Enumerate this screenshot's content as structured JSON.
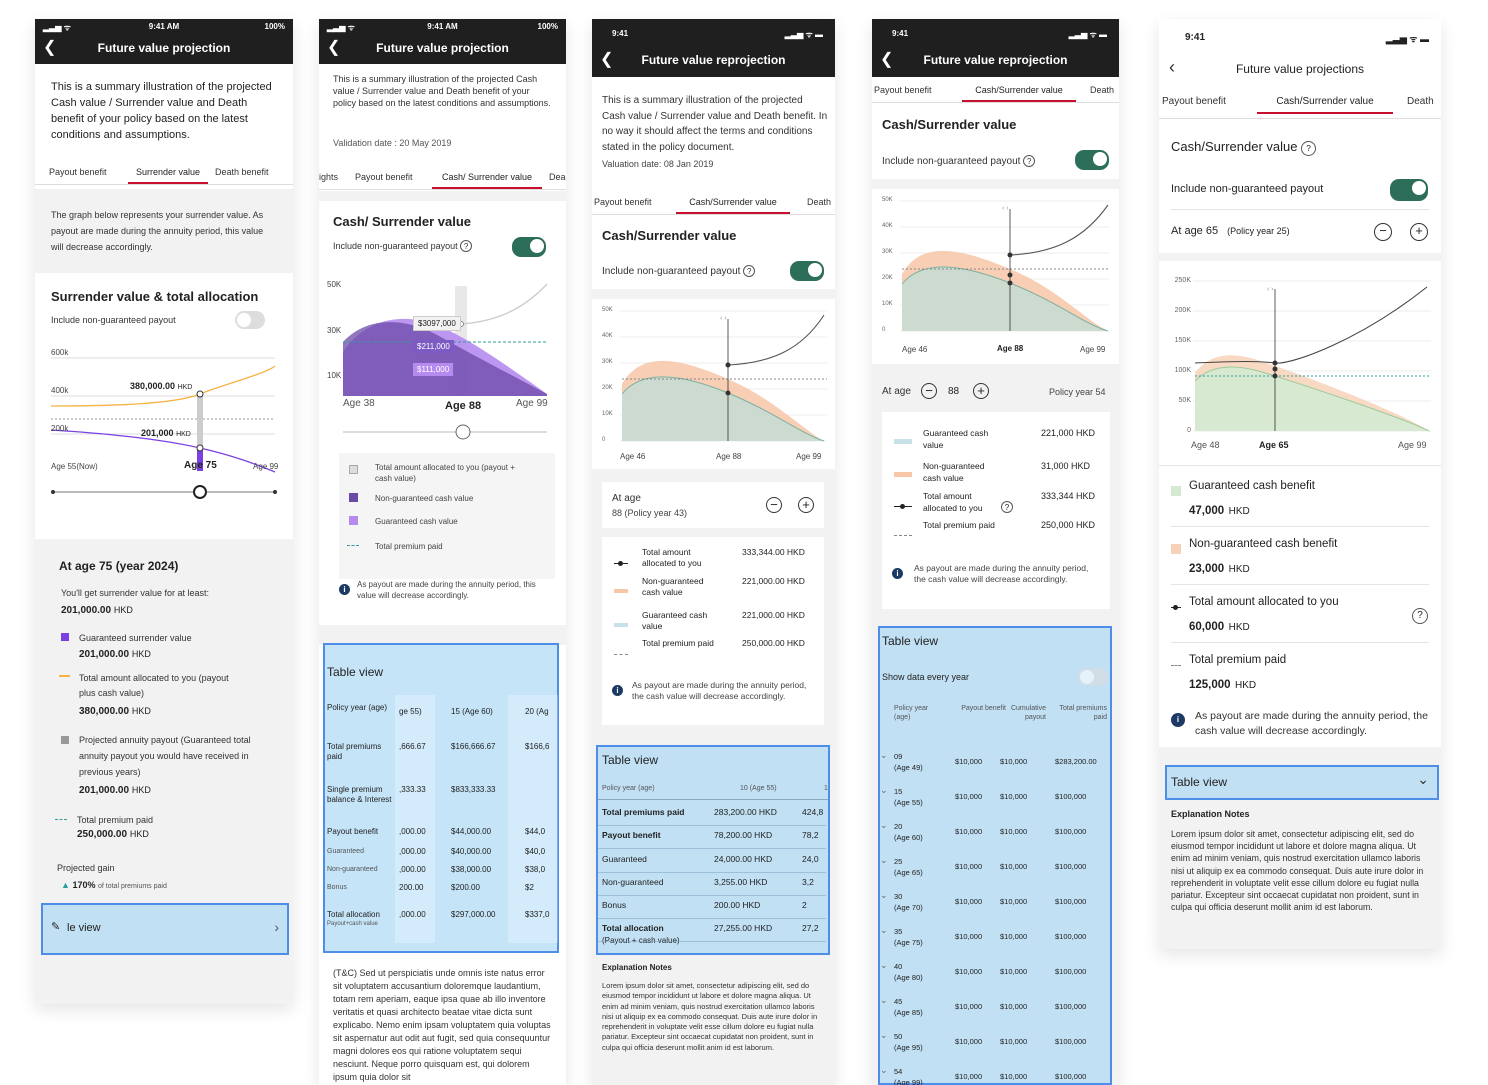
{
  "s1": {
    "status": {
      "time": "9:41 AM",
      "battery": "100%"
    },
    "title": "Future value projection",
    "intro": "This is a summary illustration of the projected Cash value / Surrender value and Death benefit of your policy based on the latest conditions and assumptions.",
    "tabs": [
      "Payout benefit",
      "Surrender value",
      "Death benefit"
    ],
    "graph_note": "The graph below represents your surrender value. As payout are made during the annuity period, this value will decrease accordingly.",
    "section_title": "Surrender value & total allocation",
    "include_label": "Include non-guaranteed payout",
    "y_ticks": [
      "600k",
      "400k",
      "200k"
    ],
    "label1": "380,000.00",
    "label2": "201,000",
    "unit": "HKD",
    "x_labels": [
      "Age 55(Now)",
      "Age 75",
      "Age 99"
    ],
    "at_age": "At age 75 (year 2024)",
    "get_text": "You'll get surrender value for at least:",
    "get_value": "201,000.00",
    "legend": [
      {
        "label": "Guaranteed surrender value",
        "value": "201,000.00"
      },
      {
        "label": "Total amount allocated to you (payout plus cash value)",
        "value": "380,000.00"
      },
      {
        "label": "Projected annuity payout (Guaranteed total annuity payout you would have received in previous years)",
        "value": "201,000.00"
      },
      {
        "label": "Total premium paid",
        "value": "250,000.00"
      }
    ],
    "gain_label": "Projected gain",
    "gain_value": "170%",
    "gain_suffix": "of total premiums paid",
    "table_view": "le view"
  },
  "s2": {
    "status": {
      "time": "9:41 AM",
      "battery": "100%"
    },
    "title": "Future value projection",
    "intro": "This is a summary illustration of the projected Cash value / Surrender value and Death benefit of your policy based on the latest conditions and assumptions.",
    "validation": "Validation date : 20 May 2019",
    "tabs": [
      "ights",
      "Payout benefit",
      "Cash/ Surrender value",
      "Dea"
    ],
    "section_title": "Cash/ Surrender value",
    "include_label": "Include non-guaranteed payout",
    "y_ticks": [
      "50K",
      "30K",
      "10K"
    ],
    "tags": [
      "$3097,000",
      "$211,000",
      "$111,000"
    ],
    "x_labels": [
      "Age 38",
      "Age 88",
      "Age 99"
    ],
    "legend": [
      "Total amount allocated to you (payout + cash value)",
      "Non-guaranteed cash value",
      "Guaranteed cash value",
      "Total premium paid"
    ],
    "note": "As payout are made during the annuity period, this value will decrease accordingly.",
    "table_title": "Table view",
    "table_cols": [
      "ge 55)",
      "15 (Age 60)",
      "20 (Ag"
    ],
    "table_rows": [
      {
        "label": "Policy year (age)",
        "v": [
          "",
          "",
          ""
        ]
      },
      {
        "label": "Total premiums paid",
        "v": [
          ",666.67",
          "$166,666.67",
          "$166,6"
        ]
      },
      {
        "label": "Single premium balance & Interest",
        "v": [
          ",333.33",
          "$833,333.33",
          ""
        ]
      },
      {
        "label": "Payout benefit",
        "v": [
          ",000.00",
          "$44,000.00",
          "$44,0"
        ]
      },
      {
        "label": "Guaranteed",
        "v": [
          ",000.00",
          "$40,000.00",
          "$40,0"
        ]
      },
      {
        "label": "Non-guaranteed",
        "v": [
          ",000.00",
          "$38,000.00",
          "$38,0"
        ]
      },
      {
        "label": "Bonus",
        "v": [
          "200.00",
          "$200.00",
          "$2"
        ]
      },
      {
        "label": "Total allocation",
        "sub": "Payout+cash value",
        "v": [
          ",000.00",
          "$297,000.00",
          "$337,0"
        ]
      }
    ],
    "tc": "(T&C) Sed ut perspiciatis unde omnis iste natus error sit voluptatem accusantium doloremque laudantium, totam rem aperiam, eaque ipsa quae ab illo inventore veritatis et quasi architecto beatae vitae dicta sunt explicabo. Nemo enim ipsam voluptatem quia voluptas sit aspernatur aut odit aut fugit, sed quia consequuntur magni dolores eos qui ratione voluptatem sequi nesciunt. Neque porro quisquam est, qui dolorem ipsum quia dolor sit"
  },
  "s3": {
    "status": {
      "time": "9:41"
    },
    "title": "Future value reprojection",
    "intro": "This is a summary illustration of the projected Cash value / Surrender value and Death benefit. In no way it should affect the terms and conditions stated in the policy document.",
    "valuation": "Valuation date: 08 Jan 2019",
    "tabs": [
      "Payout benefit",
      "Cash/Surrender value",
      "Death"
    ],
    "section_title": "Cash/Surrender value",
    "include_label": "Include non-guaranteed payout",
    "y_ticks": [
      "50K",
      "40K",
      "30K",
      "20K",
      "10K",
      "0"
    ],
    "x_labels": [
      "Age 46",
      "Age 88",
      "Age 99"
    ],
    "at_age": "At age",
    "at_age_sub": "88 (Policy year 43)",
    "legend": [
      {
        "label": "Total amount allocated to you",
        "value": "333,344.00 HKD"
      },
      {
        "label": "Non-guaranteed cash value",
        "value": "221,000.00 HKD"
      },
      {
        "label": "Guaranteed cash value",
        "value": "221,000.00 HKD"
      },
      {
        "label": "Total premium paid",
        "value": "250,000.00 HKD"
      }
    ],
    "note": "As payout are made during the annuity period, the cash value will decrease accordingly.",
    "table_title": "Table view",
    "table_head": [
      "Policy year (age)",
      "10 (Age 55)",
      "1"
    ],
    "table_rows": [
      {
        "label": "Total premiums paid",
        "v": [
          "283,200.00 HKD",
          "424,8"
        ],
        "bold": true
      },
      {
        "label": "Payout benefit",
        "v": [
          "78,200.00 HKD",
          "78,2"
        ],
        "bold": true
      },
      {
        "label": "Guaranteed",
        "v": [
          "24,000.00 HKD",
          "24,0"
        ]
      },
      {
        "label": "Non-guaranteed",
        "v": [
          "3,255.00 HKD",
          "3,2"
        ]
      },
      {
        "label": "Bonus",
        "v": [
          "200.00 HKD",
          "2"
        ]
      },
      {
        "label": "Total allocation",
        "sub": "(Payout + cash value)",
        "v": [
          "27,255.00 HKD",
          "27,2"
        ],
        "bold": true
      }
    ],
    "expl_title": "Explanation Notes",
    "expl": "Lorem ipsum dolor sit amet, consectetur adipiscing elit, sed do eiusmod tempor incididunt ut labore et dolore magna aliqua. Ut enim ad minim veniam, quis nostrud exercitation ullamco laboris nisi ut aliquip ex ea commodo consequat. Duis aute irure dolor in reprehenderit in voluptate velit esse cillum dolore eu fugiat nulla pariatur. Excepteur sint occaecat cupidatat non proident, sunt in culpa qui officia deserunt mollit anim id est laborum."
  },
  "s4": {
    "status": {
      "time": "9:41"
    },
    "title": "Future value reprojection",
    "tabs": [
      "Payout benefit",
      "Cash/Surrender value",
      "Death"
    ],
    "section_title": "Cash/Surrender value",
    "include_label": "Include non-guaranteed payout",
    "y_ticks": [
      "50K",
      "40K",
      "30K",
      "20K",
      "10K",
      "0"
    ],
    "x_labels": [
      "Age 46",
      "Age 88",
      "Age 99"
    ],
    "at_age": "At age",
    "age_value": "88",
    "policy_year": "Policy year 54",
    "legend": [
      {
        "label": "Guaranteed cash value",
        "value": "221,000 HKD"
      },
      {
        "label": "Non-guaranteed cash value",
        "value": "31,000 HKD"
      },
      {
        "label": "Total amount allocated to you",
        "value": "333,344 HKD"
      },
      {
        "label": "Total premium paid",
        "value": "250,000 HKD"
      }
    ],
    "note": "As payout are made during the annuity period, the cash value will decrease accordingly.",
    "table_title": "Table view",
    "show_every": "Show data every year",
    "cols": [
      "Policy year (age)",
      "Payout benefit",
      "Cumulative payout",
      "Total premiums paid"
    ],
    "rows": [
      {
        "y": "09",
        "a": "(Age 49)",
        "p": "$10,000",
        "c": "$10,000",
        "t": "$283,200.00"
      },
      {
        "y": "15",
        "a": "(Age 55)",
        "p": "$10,000",
        "c": "$10,000",
        "t": "$100,000"
      },
      {
        "y": "20",
        "a": "(Age 60)",
        "p": "$10,000",
        "c": "$10,000",
        "t": "$100,000"
      },
      {
        "y": "25",
        "a": "(Age 65)",
        "p": "$10,000",
        "c": "$10,000",
        "t": "$100,000"
      },
      {
        "y": "30",
        "a": "(Age 70)",
        "p": "$10,000",
        "c": "$10,000",
        "t": "$100,000"
      },
      {
        "y": "35",
        "a": "(Age 75)",
        "p": "$10,000",
        "c": "$10,000",
        "t": "$100,000"
      },
      {
        "y": "40",
        "a": "(Age 80)",
        "p": "$10,000",
        "c": "$10,000",
        "t": "$100,000"
      },
      {
        "y": "45",
        "a": "(Age 85)",
        "p": "$10,000",
        "c": "$10,000",
        "t": "$100,000"
      },
      {
        "y": "50",
        "a": "(Age 95)",
        "p": "$10,000",
        "c": "$10,000",
        "t": "$100,000"
      },
      {
        "y": "54",
        "a": "(Age 99)",
        "p": "$10,000",
        "c": "$10,000",
        "t": "$100,000"
      }
    ]
  },
  "s5": {
    "status": {
      "time": "9:41"
    },
    "title": "Future value projections",
    "tabs": [
      "Payout benefit",
      "Cash/Surrender value",
      "Death"
    ],
    "section_title": "Cash/Surrender value",
    "include_label": "Include non-guaranteed payout",
    "at_age": "At age 65",
    "policy_year": "(Policy year 25)",
    "y_ticks": [
      "250K",
      "200K",
      "150K",
      "100K",
      "50K",
      "0"
    ],
    "x_labels": [
      "Age 48",
      "Age 65",
      "Age 99"
    ],
    "legend": [
      {
        "label": "Guaranteed cash benefit",
        "value": "47,000"
      },
      {
        "label": "Non-guaranteed cash benefit",
        "value": "23,000"
      },
      {
        "label": "Total amount allocated to you",
        "value": "60,000"
      },
      {
        "label": "Total premium paid",
        "value": "125,000"
      }
    ],
    "unit": "HKD",
    "note": "As payout are made during the annuity period, the cash value will decrease accordingly.",
    "table_title": "Table view",
    "expl_title": "Explanation Notes",
    "expl": "Lorem ipsum dolor sit amet, consectetur adipiscing elit, sed do eiusmod tempor incididunt ut labore et dolore magna aliqua. Ut enim ad minim veniam, quis nostrud exercitation ullamco laboris nisi ut aliquip ex ea commodo consequat. Duis aute irure dolor in reprehenderit in voluptate velit esse cillum dolore eu fugiat nulla pariatur. Excepteur sint occaecat cupidatat non proident, sunt in culpa qui officia deserunt mollit anim id est laborum."
  },
  "colors": {
    "accent": "#c8102e",
    "toggle": "#2c6e5a",
    "purple": "#7b3fe4",
    "orange": "#f5b342",
    "highlight": "#4f8ee8"
  }
}
